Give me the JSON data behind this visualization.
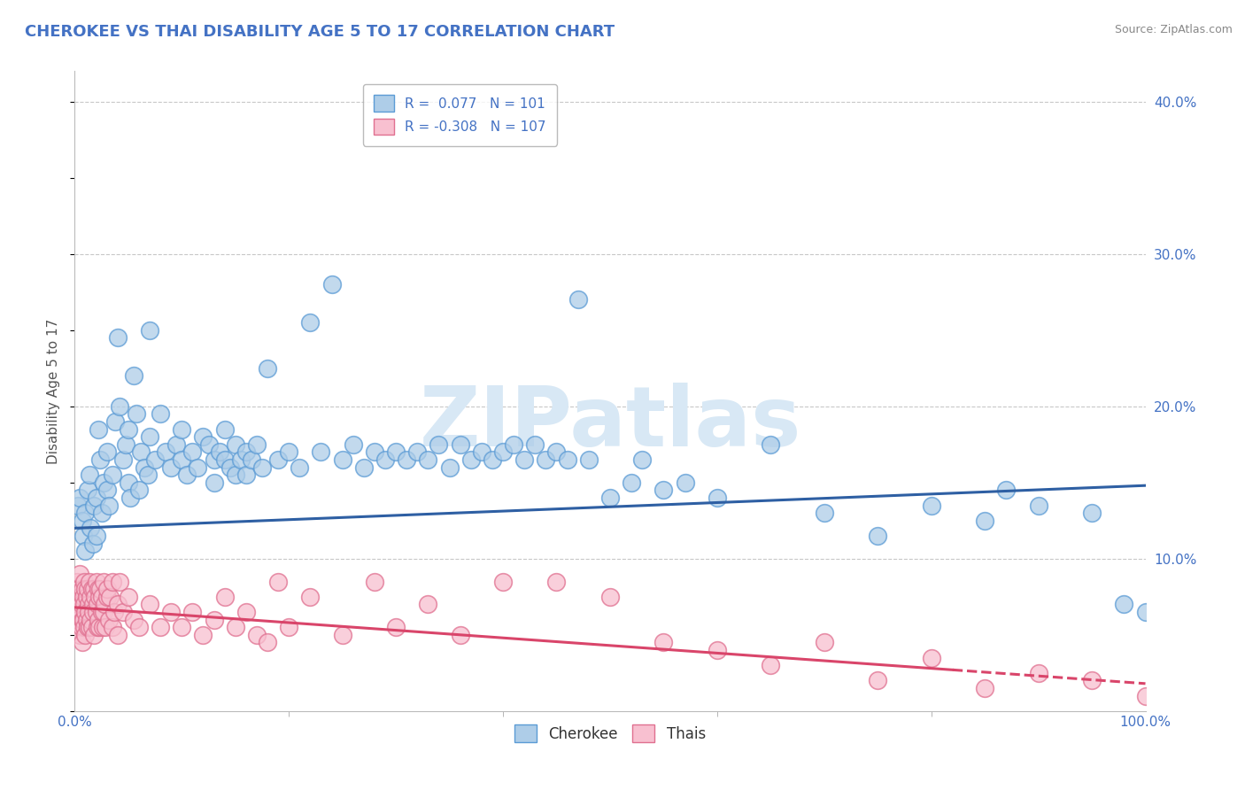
{
  "title": "CHEROKEE VS THAI DISABILITY AGE 5 TO 17 CORRELATION CHART",
  "source_text": "Source: ZipAtlas.com",
  "ylabel": "Disability Age 5 to 17",
  "xlim": [
    0,
    100
  ],
  "ylim": [
    0,
    42
  ],
  "ytick_values": [
    10,
    20,
    30,
    40
  ],
  "cherokee_color": "#aecde8",
  "cherokee_edge": "#5b9bd5",
  "thai_color": "#f8c0d0",
  "thai_edge": "#e07090",
  "cherokee_line_color": "#2e5fa3",
  "thai_line_color": "#d9456a",
  "grid_color": "#c8c8c8",
  "background_color": "#ffffff",
  "watermark_text": "ZIPatlas",
  "watermark_color": "#d8e8f5",
  "cherokee_intercept": 12.0,
  "cherokee_slope": 0.028,
  "thai_intercept": 6.8,
  "thai_slope": -0.05,
  "thai_solid_end": 82,
  "cherokee_points": [
    [
      0.3,
      13.5
    ],
    [
      0.5,
      14.0
    ],
    [
      0.7,
      12.5
    ],
    [
      0.8,
      11.5
    ],
    [
      1.0,
      10.5
    ],
    [
      1.0,
      13.0
    ],
    [
      1.2,
      14.5
    ],
    [
      1.4,
      15.5
    ],
    [
      1.5,
      12.0
    ],
    [
      1.7,
      11.0
    ],
    [
      1.8,
      13.5
    ],
    [
      2.0,
      14.0
    ],
    [
      2.0,
      11.5
    ],
    [
      2.2,
      18.5
    ],
    [
      2.4,
      16.5
    ],
    [
      2.5,
      13.0
    ],
    [
      2.7,
      15.0
    ],
    [
      3.0,
      14.5
    ],
    [
      3.0,
      17.0
    ],
    [
      3.2,
      13.5
    ],
    [
      3.5,
      15.5
    ],
    [
      3.8,
      19.0
    ],
    [
      4.0,
      24.5
    ],
    [
      4.2,
      20.0
    ],
    [
      4.5,
      16.5
    ],
    [
      4.8,
      17.5
    ],
    [
      5.0,
      15.0
    ],
    [
      5.0,
      18.5
    ],
    [
      5.2,
      14.0
    ],
    [
      5.5,
      22.0
    ],
    [
      5.8,
      19.5
    ],
    [
      6.0,
      14.5
    ],
    [
      6.2,
      17.0
    ],
    [
      6.5,
      16.0
    ],
    [
      6.8,
      15.5
    ],
    [
      7.0,
      18.0
    ],
    [
      7.0,
      25.0
    ],
    [
      7.5,
      16.5
    ],
    [
      8.0,
      19.5
    ],
    [
      8.5,
      17.0
    ],
    [
      9.0,
      16.0
    ],
    [
      9.5,
      17.5
    ],
    [
      10.0,
      16.5
    ],
    [
      10.0,
      18.5
    ],
    [
      10.5,
      15.5
    ],
    [
      11.0,
      17.0
    ],
    [
      11.5,
      16.0
    ],
    [
      12.0,
      18.0
    ],
    [
      12.5,
      17.5
    ],
    [
      13.0,
      16.5
    ],
    [
      13.0,
      15.0
    ],
    [
      13.5,
      17.0
    ],
    [
      14.0,
      16.5
    ],
    [
      14.0,
      18.5
    ],
    [
      14.5,
      16.0
    ],
    [
      15.0,
      17.5
    ],
    [
      15.0,
      15.5
    ],
    [
      15.5,
      16.5
    ],
    [
      16.0,
      17.0
    ],
    [
      16.0,
      15.5
    ],
    [
      16.5,
      16.5
    ],
    [
      17.0,
      17.5
    ],
    [
      17.5,
      16.0
    ],
    [
      18.0,
      22.5
    ],
    [
      19.0,
      16.5
    ],
    [
      20.0,
      17.0
    ],
    [
      21.0,
      16.0
    ],
    [
      22.0,
      25.5
    ],
    [
      23.0,
      17.0
    ],
    [
      24.0,
      28.0
    ],
    [
      25.0,
      16.5
    ],
    [
      26.0,
      17.5
    ],
    [
      27.0,
      16.0
    ],
    [
      28.0,
      17.0
    ],
    [
      29.0,
      16.5
    ],
    [
      30.0,
      17.0
    ],
    [
      31.0,
      16.5
    ],
    [
      32.0,
      17.0
    ],
    [
      33.0,
      16.5
    ],
    [
      34.0,
      17.5
    ],
    [
      35.0,
      16.0
    ],
    [
      36.0,
      17.5
    ],
    [
      37.0,
      16.5
    ],
    [
      38.0,
      17.0
    ],
    [
      39.0,
      16.5
    ],
    [
      40.0,
      17.0
    ],
    [
      41.0,
      17.5
    ],
    [
      42.0,
      16.5
    ],
    [
      43.0,
      17.5
    ],
    [
      44.0,
      16.5
    ],
    [
      45.0,
      17.0
    ],
    [
      46.0,
      16.5
    ],
    [
      47.0,
      27.0
    ],
    [
      48.0,
      16.5
    ],
    [
      50.0,
      14.0
    ],
    [
      52.0,
      15.0
    ],
    [
      53.0,
      16.5
    ],
    [
      55.0,
      14.5
    ],
    [
      57.0,
      15.0
    ],
    [
      60.0,
      14.0
    ],
    [
      65.0,
      17.5
    ],
    [
      70.0,
      13.0
    ],
    [
      75.0,
      11.5
    ],
    [
      80.0,
      13.5
    ],
    [
      85.0,
      12.5
    ],
    [
      87.0,
      14.5
    ],
    [
      90.0,
      13.5
    ],
    [
      95.0,
      13.0
    ],
    [
      98.0,
      7.0
    ],
    [
      100.0,
      6.5
    ]
  ],
  "thai_points": [
    [
      0.1,
      7.5
    ],
    [
      0.2,
      8.5
    ],
    [
      0.2,
      6.0
    ],
    [
      0.3,
      7.0
    ],
    [
      0.3,
      5.5
    ],
    [
      0.4,
      8.0
    ],
    [
      0.4,
      6.5
    ],
    [
      0.5,
      7.5
    ],
    [
      0.5,
      5.0
    ],
    [
      0.5,
      9.0
    ],
    [
      0.6,
      7.0
    ],
    [
      0.6,
      5.5
    ],
    [
      0.7,
      8.0
    ],
    [
      0.7,
      6.0
    ],
    [
      0.7,
      4.5
    ],
    [
      0.8,
      7.5
    ],
    [
      0.8,
      6.0
    ],
    [
      0.9,
      8.5
    ],
    [
      0.9,
      5.5
    ],
    [
      0.9,
      7.0
    ],
    [
      1.0,
      8.0
    ],
    [
      1.0,
      6.5
    ],
    [
      1.0,
      5.0
    ],
    [
      1.1,
      7.5
    ],
    [
      1.1,
      6.0
    ],
    [
      1.2,
      8.0
    ],
    [
      1.2,
      5.5
    ],
    [
      1.3,
      7.0
    ],
    [
      1.3,
      6.5
    ],
    [
      1.4,
      8.5
    ],
    [
      1.4,
      5.5
    ],
    [
      1.5,
      7.5
    ],
    [
      1.5,
      6.0
    ],
    [
      1.6,
      8.0
    ],
    [
      1.6,
      5.5
    ],
    [
      1.7,
      7.0
    ],
    [
      1.7,
      6.5
    ],
    [
      1.8,
      8.0
    ],
    [
      1.8,
      5.0
    ],
    [
      1.9,
      7.5
    ],
    [
      2.0,
      6.5
    ],
    [
      2.0,
      8.5
    ],
    [
      2.1,
      5.5
    ],
    [
      2.1,
      7.0
    ],
    [
      2.2,
      8.0
    ],
    [
      2.2,
      6.0
    ],
    [
      2.3,
      7.5
    ],
    [
      2.3,
      5.5
    ],
    [
      2.4,
      8.0
    ],
    [
      2.5,
      6.5
    ],
    [
      2.5,
      7.5
    ],
    [
      2.6,
      5.5
    ],
    [
      2.7,
      8.5
    ],
    [
      2.7,
      6.5
    ],
    [
      2.8,
      7.0
    ],
    [
      2.9,
      5.5
    ],
    [
      3.0,
      7.5
    ],
    [
      3.0,
      8.0
    ],
    [
      3.2,
      6.0
    ],
    [
      3.3,
      7.5
    ],
    [
      3.5,
      5.5
    ],
    [
      3.5,
      8.5
    ],
    [
      3.7,
      6.5
    ],
    [
      4.0,
      7.0
    ],
    [
      4.0,
      5.0
    ],
    [
      4.2,
      8.5
    ],
    [
      4.5,
      6.5
    ],
    [
      5.0,
      7.5
    ],
    [
      5.5,
      6.0
    ],
    [
      6.0,
      5.5
    ],
    [
      7.0,
      7.0
    ],
    [
      8.0,
      5.5
    ],
    [
      9.0,
      6.5
    ],
    [
      10.0,
      5.5
    ],
    [
      11.0,
      6.5
    ],
    [
      12.0,
      5.0
    ],
    [
      13.0,
      6.0
    ],
    [
      14.0,
      7.5
    ],
    [
      15.0,
      5.5
    ],
    [
      16.0,
      6.5
    ],
    [
      17.0,
      5.0
    ],
    [
      18.0,
      4.5
    ],
    [
      19.0,
      8.5
    ],
    [
      20.0,
      5.5
    ],
    [
      22.0,
      7.5
    ],
    [
      25.0,
      5.0
    ],
    [
      28.0,
      8.5
    ],
    [
      30.0,
      5.5
    ],
    [
      33.0,
      7.0
    ],
    [
      36.0,
      5.0
    ],
    [
      40.0,
      8.5
    ],
    [
      45.0,
      8.5
    ],
    [
      50.0,
      7.5
    ],
    [
      55.0,
      4.5
    ],
    [
      60.0,
      4.0
    ],
    [
      65.0,
      3.0
    ],
    [
      70.0,
      4.5
    ],
    [
      75.0,
      2.0
    ],
    [
      80.0,
      3.5
    ],
    [
      85.0,
      1.5
    ],
    [
      90.0,
      2.5
    ],
    [
      95.0,
      2.0
    ],
    [
      100.0,
      1.0
    ]
  ]
}
